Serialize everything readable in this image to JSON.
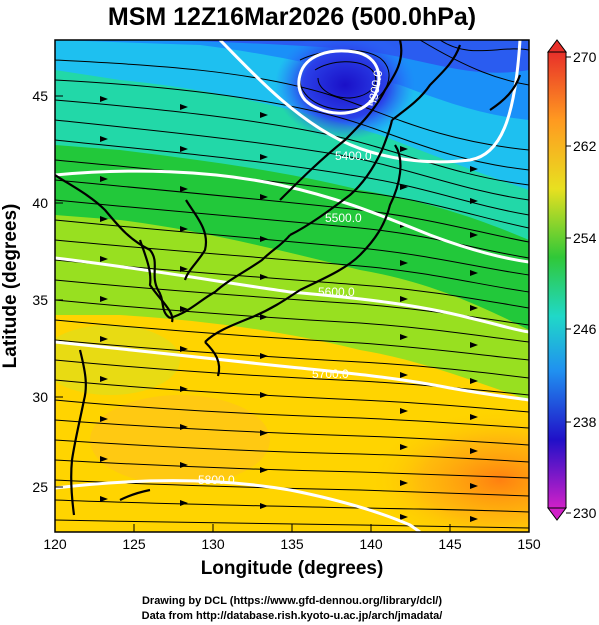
{
  "title": "MSM 12Z16Mar2026 (500.0hPa)",
  "x_axis": {
    "label": "Longitude (degrees)",
    "ticks": [
      "120",
      "125",
      "130",
      "135",
      "140",
      "145",
      "150"
    ]
  },
  "y_axis": {
    "label": "Latitude  (degrees)",
    "ticks": [
      "25",
      "30",
      "35",
      "40",
      "45"
    ]
  },
  "colorbar": {
    "labels": [
      "270",
      "262",
      "254",
      "246",
      "238",
      "230"
    ]
  },
  "contour_labels": [
    "5300.0",
    "5400.0",
    "5500.0",
    "5600.0",
    "5700.0",
    "5800.0"
  ],
  "credits": {
    "line1": "Drawing by DCL (https://www.gfd-dennou.org/library/dcl/)",
    "line2": "Data from http://database.rish.kyoto-u.ac.jp/arch/jmadata/"
  },
  "colors": {
    "cold": "#1a10d8",
    "cool": "#00b8ff",
    "mid": "#19c832",
    "warm": "#f0d800",
    "hot": "#ff8a10",
    "contour": "#ffffff",
    "coast": "#000000"
  }
}
